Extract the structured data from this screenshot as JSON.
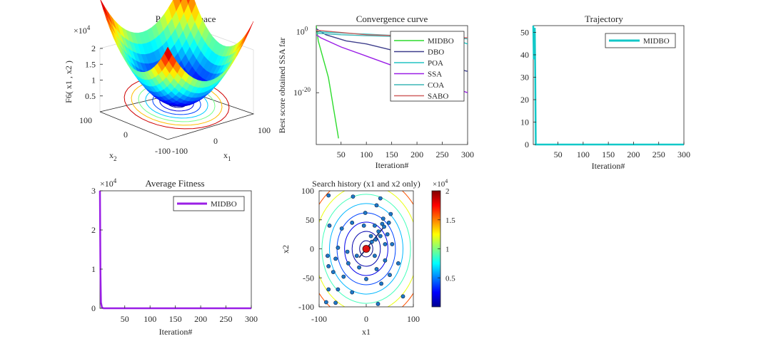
{
  "colors": {
    "MIDBO": "#2ddc2d",
    "DBO": "#3e3e8c",
    "POA": "#22c4c4",
    "SSA": "#9a1ee6",
    "COA": "#3cb6b6",
    "SABO": "#d06060",
    "trajectory": "#12c8c8",
    "avg_fitness": "#9a1ee6",
    "history_point": "#1e78c8",
    "best_point": "#e01010"
  },
  "panels": {
    "surface": {
      "title": "Parameter space",
      "zlabel": "F6( x1 , x2 )",
      "xlabel": "x1",
      "ylabel": "x2",
      "exponent": "×10",
      "exponent_power": "4",
      "zticks": [
        "2",
        "1.5",
        "1",
        "0.5"
      ],
      "yticks": [
        "100",
        "0",
        "-100"
      ],
      "xticks": [
        "-100",
        "0",
        "100"
      ]
    },
    "convergence": {
      "title": "Convergence curve",
      "ylabel": "Best score obtained SSA far",
      "xlabel": "Iteration#",
      "yticks": [
        "10",
        "10"
      ],
      "ytick_powers": [
        "0",
        "-20"
      ],
      "xticks": [
        "50",
        "100",
        "150",
        "200",
        "250",
        "300"
      ]
    },
    "trajectory": {
      "title": "Trajectory",
      "xlabel": "Iteration#",
      "yticks": [
        "50",
        "40",
        "30",
        "20",
        "10",
        "0"
      ],
      "xticks": [
        "50",
        "100",
        "150",
        "200",
        "250",
        "300"
      ]
    },
    "avg_fitness": {
      "title": "Average Fitness",
      "xlabel": "Iteration#",
      "exponent": "×10",
      "exponent_power": "4",
      "yticks": [
        "3",
        "2",
        "1",
        "0"
      ],
      "xticks": [
        "50",
        "100",
        "150",
        "200",
        "250",
        "300"
      ]
    },
    "history": {
      "title": "Search history (x1 and x2 only)",
      "xlabel": "x1",
      "ylabel": "x2",
      "yticks": [
        "100",
        "50",
        "0",
        "-50",
        "-100"
      ],
      "xticks": [
        "-100",
        "0",
        "100"
      ],
      "colorbar_exponent": "×10",
      "colorbar_power": "4",
      "colorbar_ticks": [
        "2",
        "1.5",
        "1",
        "0.5"
      ]
    }
  },
  "chart_data": [
    {
      "type": "surface",
      "title": "Parameter space",
      "function": "F6",
      "x_range": [
        -100,
        100
      ],
      "y_range": [
        -100,
        100
      ],
      "z_range": [
        0,
        20000
      ],
      "zlabel": "F6( x1 , x2 )"
    },
    {
      "type": "line",
      "title": "Convergence curve",
      "xlabel": "Iteration#",
      "ylabel": "Best score obtained SSA far",
      "ylog": true,
      "xlim": [
        1,
        300
      ],
      "legend_position": "top-right",
      "series": [
        {
          "name": "MIDBO",
          "x": [
            1,
            5,
            10,
            15,
            20,
            25,
            30,
            35,
            40,
            45
          ],
          "log10_y": [
            2,
            -3,
            -6,
            -9,
            -12,
            -15,
            -20,
            -25,
            -30,
            -35
          ]
        },
        {
          "name": "DBO",
          "x": [
            1,
            20,
            60,
            100,
            150,
            200,
            250,
            300
          ],
          "log10_y": [
            1,
            -1,
            -3,
            -4,
            -6,
            -8,
            -11,
            -13
          ]
        },
        {
          "name": "POA",
          "x": [
            1,
            50,
            100,
            150,
            200,
            250,
            270,
            300
          ],
          "log10_y": [
            0,
            -0.4,
            -0.8,
            -1.2,
            -1.6,
            -2,
            -2.3,
            -4
          ]
        },
        {
          "name": "SSA",
          "x": [
            1,
            10,
            50,
            100,
            150,
            200,
            250,
            300
          ],
          "log10_y": [
            -1,
            -2,
            -5,
            -8,
            -11,
            -14,
            -17,
            -20
          ]
        },
        {
          "name": "COA",
          "x": [
            1,
            50,
            100,
            150,
            200,
            220,
            300
          ],
          "log10_y": [
            -0.5,
            -1,
            -1.3,
            -1.5,
            -1.6,
            -2,
            -2.3
          ]
        },
        {
          "name": "SABO",
          "x": [
            1,
            100,
            200,
            300
          ],
          "log10_y": [
            0.5,
            -1,
            -1.5,
            -2
          ]
        }
      ]
    },
    {
      "type": "line",
      "title": "Trajectory",
      "xlabel": "Iteration#",
      "xlim": [
        1,
        300
      ],
      "ylim": [
        0,
        53
      ],
      "legend_position": "top-right",
      "series": [
        {
          "name": "MIDBO",
          "x": [
            1,
            2,
            3,
            4,
            5,
            6,
            8,
            10,
            300
          ],
          "y": [
            53,
            38,
            49,
            52,
            30,
            0,
            0,
            0,
            0
          ]
        }
      ]
    },
    {
      "type": "line",
      "title": "Average Fitness",
      "xlabel": "Iteration#",
      "xlim": [
        1,
        300
      ],
      "ylim": [
        0,
        30000
      ],
      "legend_position": "top-right",
      "series": [
        {
          "name": "MIDBO",
          "x": [
            1,
            2,
            3,
            5,
            8,
            300
          ],
          "y": [
            30000,
            9000,
            1500,
            200,
            0,
            0
          ]
        }
      ]
    },
    {
      "type": "scatter",
      "title": "Search history (x1 and x2 only)",
      "xlabel": "x1",
      "ylabel": "x2",
      "xlim": [
        -100,
        100
      ],
      "ylim": [
        -100,
        100
      ],
      "colorbar_range": [
        0,
        20000
      ],
      "best": {
        "x": 0,
        "y": 0
      },
      "points": [
        [
          -80,
          92
        ],
        [
          -28,
          90
        ],
        [
          30,
          87
        ],
        [
          22,
          75
        ],
        [
          -2,
          62
        ],
        [
          52,
          60
        ],
        [
          -30,
          45
        ],
        [
          48,
          45
        ],
        [
          34,
          43
        ],
        [
          -78,
          40
        ],
        [
          -5,
          40
        ],
        [
          18,
          40
        ],
        [
          38,
          38
        ],
        [
          -52,
          35
        ],
        [
          26,
          30
        ],
        [
          45,
          25
        ],
        [
          30,
          22
        ],
        [
          20,
          16
        ],
        [
          12,
          12
        ],
        [
          55,
          8
        ],
        [
          40,
          8
        ],
        [
          -60,
          2
        ],
        [
          5,
          2
        ],
        [
          -40,
          -5
        ],
        [
          -82,
          -12
        ],
        [
          18,
          -12
        ],
        [
          -65,
          -17
        ],
        [
          40,
          -20
        ],
        [
          -38,
          -25
        ],
        [
          68,
          -25
        ],
        [
          -15,
          -32
        ],
        [
          -80,
          -30
        ],
        [
          22,
          -35
        ],
        [
          -70,
          -40
        ],
        [
          50,
          -45
        ],
        [
          -48,
          -48
        ],
        [
          0,
          -52
        ],
        [
          32,
          -60
        ],
        [
          -80,
          -70
        ],
        [
          -60,
          -70
        ],
        [
          -30,
          -75
        ],
        [
          78,
          -82
        ],
        [
          -85,
          -92
        ],
        [
          -65,
          -93
        ],
        [
          25,
          -95
        ],
        [
          10,
          22
        ],
        [
          -20,
          -12
        ],
        [
          36,
          52
        ]
      ]
    }
  ]
}
